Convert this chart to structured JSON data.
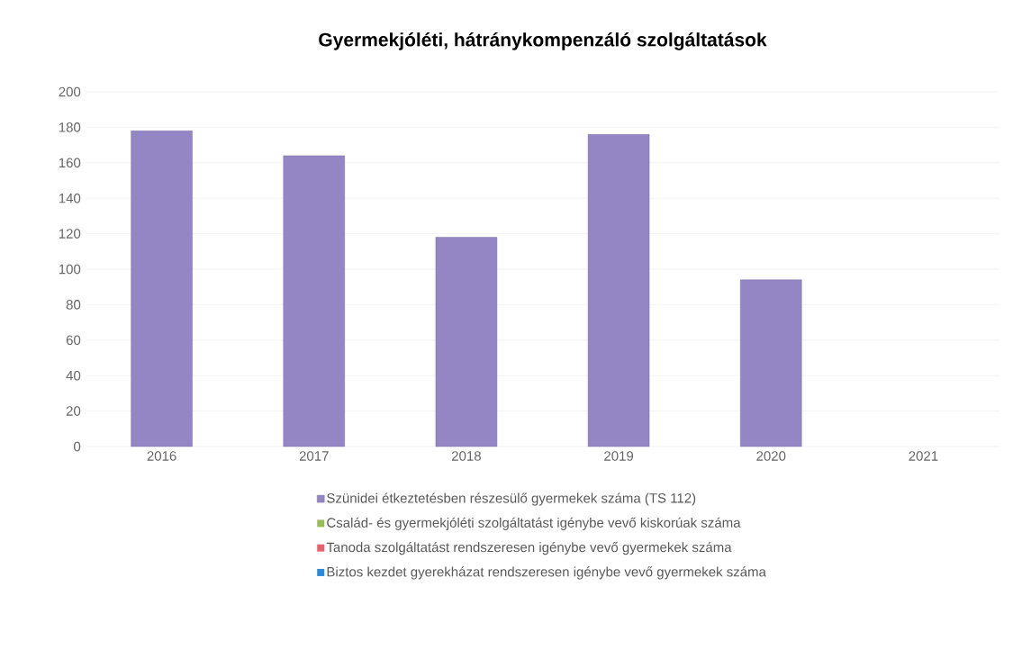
{
  "chart_data": {
    "type": "bar",
    "title": "Gyermekjóléti, hátránykompenzáló szolgáltatások",
    "categories": [
      "2016",
      "2017",
      "2018",
      "2019",
      "2020",
      "2021"
    ],
    "series": [
      {
        "name": "Szünidei étkeztetésben részesülő gyermekek száma (TS 112)",
        "color": "#9485c4",
        "values": [
          178,
          164,
          118,
          176,
          94,
          null
        ]
      },
      {
        "name": "Család- és gyermekjóléti szolgáltatást igénybe vevő kiskorúak száma",
        "color": "#9bbb59",
        "values": [
          null,
          null,
          null,
          null,
          null,
          null
        ]
      },
      {
        "name": "Tanoda szolgáltatást rendszeresen igénybe vevő gyermekek száma",
        "color": "#e8606a",
        "values": [
          null,
          null,
          null,
          null,
          null,
          null
        ]
      },
      {
        "name": "Biztos kezdet gyerekházat rendszeresen igénybe vevő gyermekek száma",
        "color": "#2a8ad8",
        "values": [
          null,
          null,
          null,
          null,
          null,
          null
        ]
      }
    ],
    "ylim": [
      0,
      200
    ],
    "yticks": [
      0,
      20,
      40,
      60,
      80,
      100,
      120,
      140,
      160,
      180,
      200
    ],
    "grid": "y",
    "legend": "bottom"
  }
}
